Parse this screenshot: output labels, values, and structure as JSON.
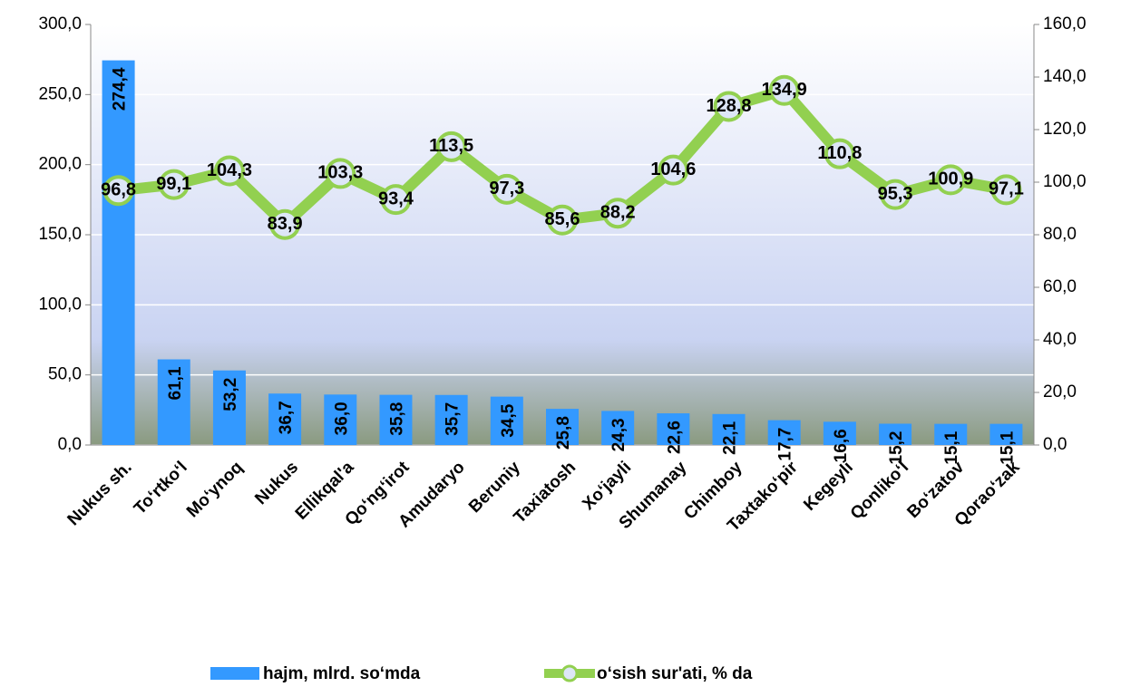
{
  "chart_data": {
    "type": "bar",
    "categories": [
      "Nukus sh.",
      "To‘rtko‘l",
      "Mo‘ynoq",
      "Nukus",
      "Ellikqal'a",
      "Qo‘ng‘irot",
      "Amudaryo",
      "Beruniy",
      "Taxiatosh",
      "Xo‘jayli",
      "Shumanay",
      "Chimboy",
      "Taxtako‘pir",
      "Kegeyli",
      "Qonliko‘l",
      "Bo‘zatov",
      "Qorao‘zak"
    ],
    "series": [
      {
        "name": "hajm, mlrd. so‘mda",
        "type": "bar",
        "color": "#3399ff",
        "values": [
          274.4,
          61.1,
          53.2,
          36.7,
          36.0,
          35.8,
          35.7,
          34.5,
          25.8,
          24.3,
          22.6,
          22.1,
          17.7,
          16.6,
          15.2,
          15.1,
          15.1
        ],
        "value_labels": [
          "274,4",
          "61,1",
          "53,2",
          "36,7",
          "36,0",
          "35,8",
          "35,7",
          "34,5",
          "25,8",
          "24,3",
          "22,6",
          "22,1",
          "17,7",
          "16,6",
          "15,2",
          "15,1",
          "15,1"
        ]
      },
      {
        "name": "o‘sish sur'ati, % da",
        "type": "line",
        "axis": "y2",
        "color": "#92d050",
        "values": [
          96.8,
          99.1,
          104.3,
          83.9,
          103.3,
          93.4,
          113.5,
          97.3,
          85.6,
          88.2,
          104.6,
          128.8,
          134.9,
          110.8,
          95.3,
          100.9,
          97.1
        ],
        "value_labels": [
          "96,8",
          "99,1",
          "104,3",
          "83,9",
          "103,3",
          "93,4",
          "113,5",
          "97,3",
          "85,6",
          "88,2",
          "104,6",
          "128,8",
          "134,9",
          "110,8",
          "95,3",
          "100,9",
          "97,1"
        ]
      }
    ],
    "ylim": [
      0,
      300
    ],
    "yticks": [
      {
        "value": 0,
        "label": "0,0"
      },
      {
        "value": 50,
        "label": "50,0"
      },
      {
        "value": 100,
        "label": "100,0"
      },
      {
        "value": 150,
        "label": "150,0"
      },
      {
        "value": 200,
        "label": "200,0"
      },
      {
        "value": 250,
        "label": "250,0"
      },
      {
        "value": 300,
        "label": "300,0"
      }
    ],
    "y2lim": [
      0,
      160
    ],
    "y2ticks": [
      {
        "value": 0,
        "label": "0,0"
      },
      {
        "value": 20,
        "label": "20,0"
      },
      {
        "value": 40,
        "label": "40,0"
      },
      {
        "value": 60,
        "label": "60,0"
      },
      {
        "value": 80,
        "label": "80,0"
      },
      {
        "value": 100,
        "label": "100,0"
      },
      {
        "value": 120,
        "label": "120,0"
      },
      {
        "value": 140,
        "label": "140,0"
      },
      {
        "value": 160,
        "label": "160,0"
      }
    ],
    "grid": true,
    "legend": "bottom"
  }
}
